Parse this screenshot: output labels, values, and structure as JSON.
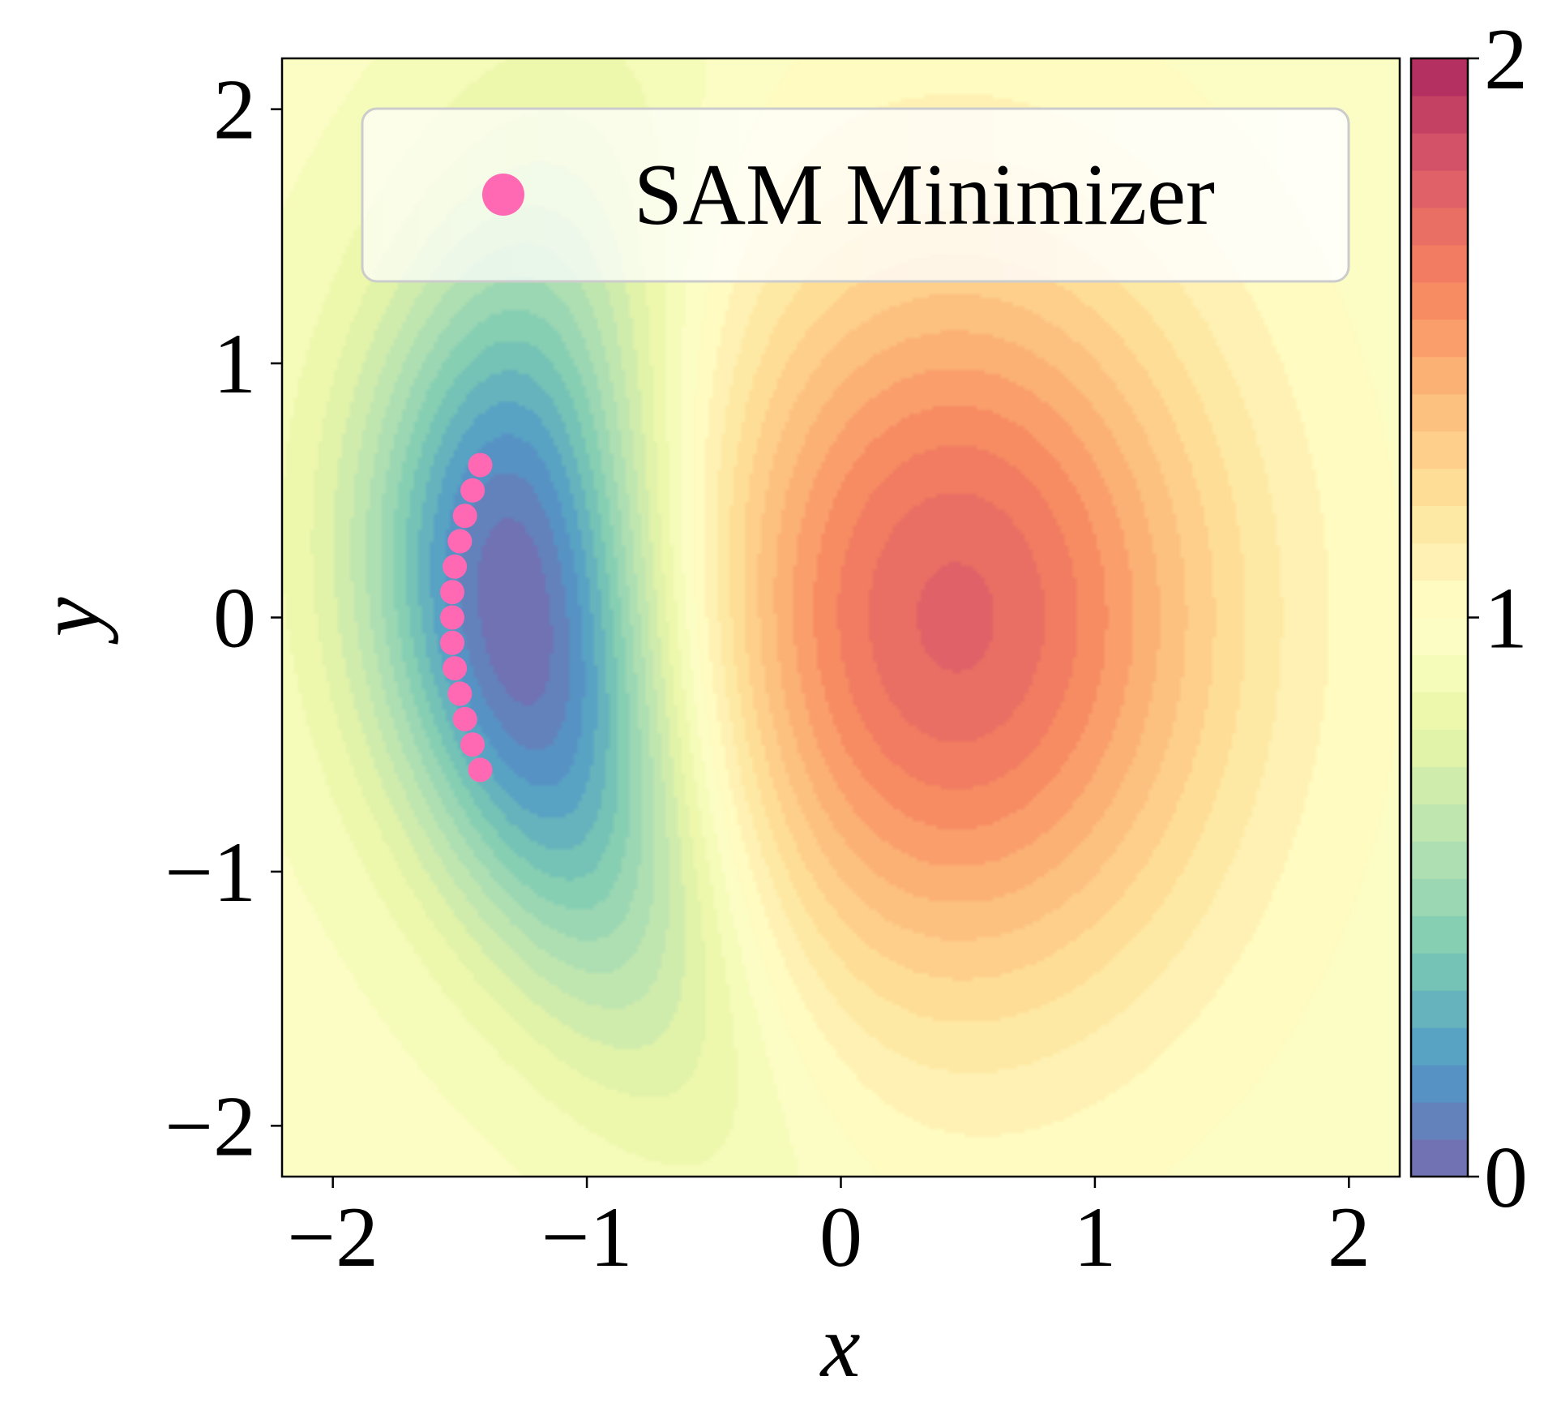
{
  "chart_data": {
    "type": "contour",
    "xlabel": "x",
    "ylabel": "y",
    "xlim": [
      -2.2,
      2.2
    ],
    "ylim": [
      -2.2,
      2.2
    ],
    "x_ticks": [
      -2,
      -1,
      0,
      1,
      2
    ],
    "x_tick_labels": [
      "−2",
      "−1",
      "0",
      "1",
      "2"
    ],
    "y_ticks": [
      -2,
      -1,
      0,
      1,
      2
    ],
    "y_tick_labels": [
      "−2",
      "−1",
      "0",
      "1",
      "2"
    ],
    "colormap": "Spectral_r",
    "colorbar": {
      "range": [
        0,
        2
      ],
      "ticks": [
        0,
        1,
        2
      ],
      "tick_labels": [
        "0",
        "1",
        "2"
      ],
      "levels": 30
    },
    "field_features": {
      "global_max": {
        "x": 0.45,
        "y": 0.0,
        "value": 1.75
      },
      "valley_min": {
        "x": -1.25,
        "y": 0.0,
        "value": 0.0
      }
    },
    "legend": {
      "position": "upper right",
      "entries": [
        {
          "label": "SAM Minimizer",
          "marker": "circle",
          "color": "#ff69b4"
        }
      ]
    },
    "series": [
      {
        "name": "SAM Minimizer",
        "type": "scatter",
        "color": "#ff69b4",
        "points": [
          [
            -1.42,
            0.6
          ],
          [
            -1.45,
            0.5
          ],
          [
            -1.48,
            0.4
          ],
          [
            -1.5,
            0.3
          ],
          [
            -1.52,
            0.2
          ],
          [
            -1.53,
            0.1
          ],
          [
            -1.53,
            0.0
          ],
          [
            -1.53,
            -0.1
          ],
          [
            -1.52,
            -0.2
          ],
          [
            -1.5,
            -0.3
          ],
          [
            -1.48,
            -0.4
          ],
          [
            -1.45,
            -0.5
          ],
          [
            -1.42,
            -0.6
          ]
        ]
      }
    ]
  }
}
